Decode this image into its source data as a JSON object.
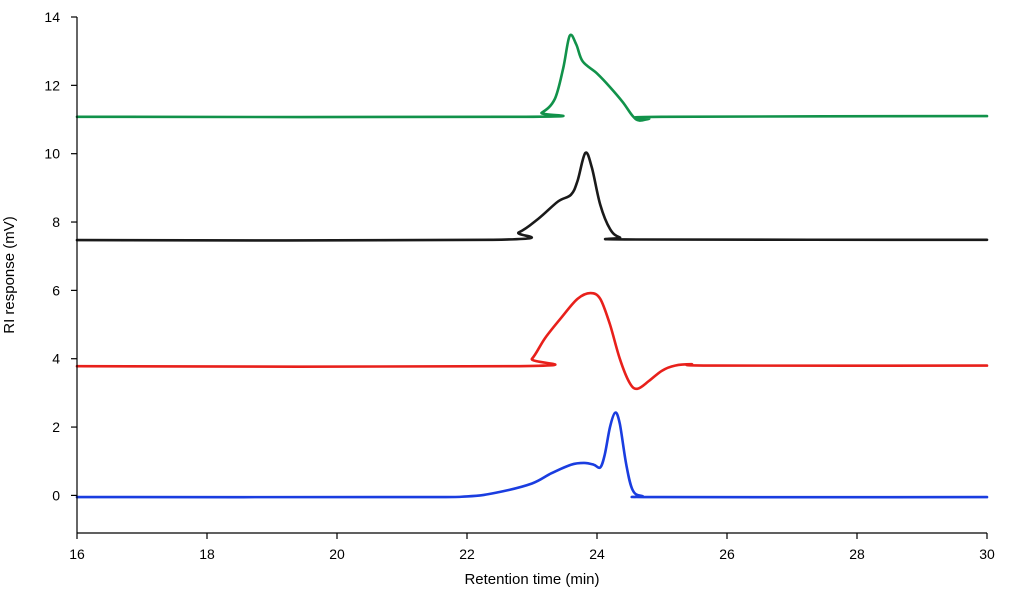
{
  "chart_data": {
    "type": "line",
    "title": "",
    "xlabel": "Retention time (min)",
    "ylabel": "RI response (mV)",
    "xlim": [
      16,
      30
    ],
    "ylim": [
      -1.1,
      14
    ],
    "x_ticks": [
      16,
      18,
      20,
      22,
      24,
      26,
      28,
      30
    ],
    "y_ticks": [
      0,
      2,
      4,
      6,
      8,
      10,
      12,
      14
    ],
    "grid": false,
    "legend": "none",
    "series": [
      {
        "color": "#1a3de0",
        "points": [
          [
            16.0,
            -0.05
          ],
          [
            21.0,
            -0.05
          ],
          [
            22.0,
            -0.03
          ],
          [
            22.5,
            0.1
          ],
          [
            23.0,
            0.35
          ],
          [
            23.3,
            0.65
          ],
          [
            23.6,
            0.9
          ],
          [
            23.8,
            0.95
          ],
          [
            23.95,
            0.9
          ],
          [
            24.05,
            0.82
          ],
          [
            24.12,
            1.2
          ],
          [
            24.2,
            2.0
          ],
          [
            24.28,
            2.42
          ],
          [
            24.35,
            2.1
          ],
          [
            24.45,
            0.9
          ],
          [
            24.55,
            0.15
          ],
          [
            24.7,
            -0.02
          ],
          [
            25.0,
            -0.05
          ],
          [
            30.0,
            -0.05
          ]
        ]
      },
      {
        "color": "#e8201b",
        "points": [
          [
            16.0,
            3.78
          ],
          [
            22.8,
            3.78
          ],
          [
            23.0,
            4.0
          ],
          [
            23.2,
            4.6
          ],
          [
            23.45,
            5.2
          ],
          [
            23.7,
            5.75
          ],
          [
            23.9,
            5.92
          ],
          [
            24.05,
            5.75
          ],
          [
            24.2,
            5.0
          ],
          [
            24.35,
            4.0
          ],
          [
            24.5,
            3.3
          ],
          [
            24.62,
            3.12
          ],
          [
            24.8,
            3.35
          ],
          [
            25.0,
            3.65
          ],
          [
            25.2,
            3.8
          ],
          [
            25.45,
            3.84
          ],
          [
            25.8,
            3.8
          ],
          [
            30.0,
            3.8
          ]
        ]
      },
      {
        "color": "#1a1a1a",
        "points": [
          [
            16.0,
            7.47
          ],
          [
            22.4,
            7.48
          ],
          [
            22.8,
            7.7
          ],
          [
            23.1,
            8.1
          ],
          [
            23.4,
            8.6
          ],
          [
            23.6,
            8.8
          ],
          [
            23.7,
            9.2
          ],
          [
            23.82,
            10.02
          ],
          [
            23.92,
            9.6
          ],
          [
            24.05,
            8.5
          ],
          [
            24.2,
            7.8
          ],
          [
            24.35,
            7.55
          ],
          [
            24.6,
            7.49
          ],
          [
            30.0,
            7.48
          ]
        ]
      },
      {
        "color": "#11924a",
        "points": [
          [
            16.0,
            11.08
          ],
          [
            22.9,
            11.08
          ],
          [
            23.15,
            11.2
          ],
          [
            23.35,
            11.6
          ],
          [
            23.48,
            12.5
          ],
          [
            23.58,
            13.45
          ],
          [
            23.68,
            13.2
          ],
          [
            23.78,
            12.7
          ],
          [
            24.0,
            12.35
          ],
          [
            24.2,
            11.95
          ],
          [
            24.4,
            11.5
          ],
          [
            24.55,
            11.1
          ],
          [
            24.65,
            10.97
          ],
          [
            24.8,
            11.02
          ],
          [
            25.0,
            11.08
          ],
          [
            30.0,
            11.1
          ]
        ]
      }
    ]
  }
}
